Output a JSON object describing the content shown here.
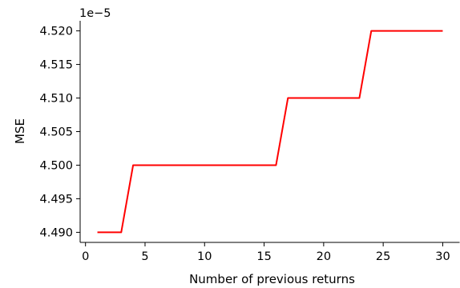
{
  "chart_data": {
    "type": "line",
    "title": "",
    "xlabel": "Number of previous returns",
    "ylabel": "MSE",
    "y_offset_label": "1e−5",
    "xlim": [
      -0.45,
      31.45
    ],
    "ylim": [
      4.4885,
      4.5215
    ],
    "x_ticks": [
      0,
      5,
      10,
      15,
      20,
      25,
      30
    ],
    "y_ticks": [
      4.49,
      4.495,
      4.5,
      4.505,
      4.51,
      4.515,
      4.52
    ],
    "y_tick_labels": [
      "4.490",
      "4.495",
      "4.500",
      "4.505",
      "4.510",
      "4.515",
      "4.520"
    ],
    "grid": false,
    "series": [
      {
        "color": "#ff0000",
        "x": [
          1,
          2,
          3,
          4,
          5,
          6,
          7,
          8,
          9,
          10,
          11,
          12,
          13,
          14,
          15,
          16,
          17,
          18,
          19,
          20,
          21,
          22,
          23,
          24,
          25,
          26,
          27,
          28,
          29,
          30
        ],
        "y": [
          4.49,
          4.49,
          4.49,
          4.5,
          4.5,
          4.5,
          4.5,
          4.5,
          4.5,
          4.5,
          4.5,
          4.5,
          4.5,
          4.5,
          4.5,
          4.5,
          4.51,
          4.51,
          4.51,
          4.51,
          4.51,
          4.51,
          4.51,
          4.52,
          4.52,
          4.52,
          4.52,
          4.52,
          4.52,
          4.52
        ]
      }
    ]
  }
}
